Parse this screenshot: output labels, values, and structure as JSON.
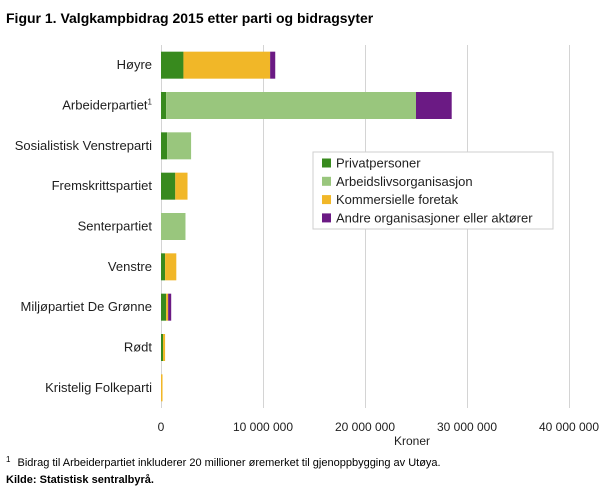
{
  "chart_data": {
    "type": "bar",
    "orientation": "horizontal",
    "stacked": true,
    "title": "Figur 1. Valgkampbidrag 2015 etter parti og bidragsyter",
    "categories": [
      "Høyre",
      "Arbeiderpartiet",
      "Sosialistisk Venstreparti",
      "Fremskrittspartiet",
      "Senterpartiet",
      "Venstre",
      "Miljøpartiet De Grønne",
      "Rødt",
      "Kristelig Folkeparti"
    ],
    "category_footnote_marks": [
      "",
      "1",
      "",
      "",
      "",
      "",
      "",
      "",
      ""
    ],
    "series": [
      {
        "name": "Privatpersoner",
        "color": "#388a1e",
        "values": [
          2200000,
          500000,
          600000,
          1400000,
          0,
          400000,
          500000,
          200000,
          0
        ]
      },
      {
        "name": "Arbeidslivsorganisasjon",
        "color": "#99c67d",
        "values": [
          0,
          24500000,
          2350000,
          0,
          2400000,
          0,
          0,
          0,
          0
        ]
      },
      {
        "name": "Kommersielle foretak",
        "color": "#f1b728",
        "values": [
          8500000,
          0,
          0,
          1200000,
          0,
          1100000,
          200000,
          200000,
          150000
        ]
      },
      {
        "name": "Andre organisasjoner eller aktører",
        "color": "#6b1a84",
        "values": [
          500000,
          3500000,
          0,
          0,
          0,
          0,
          300000,
          0,
          0
        ]
      }
    ],
    "xlabel": "Kroner",
    "xlim": [
      0,
      40000000
    ],
    "xticks": [
      0,
      10000000,
      20000000,
      30000000,
      40000000
    ],
    "xtick_labels": [
      "0",
      "10 000 000",
      "20 000 000",
      "30 000 000",
      "40 000 000"
    ],
    "grid": "vertical",
    "legend_position": "right"
  },
  "footnote": {
    "mark": "1",
    "text": "Bidrag til Arbeiderpartiet inkluderer 20 millioner øremerket til gjenoppbygging av Utøya."
  },
  "source": "Kilde: Statistisk sentralbyrå."
}
